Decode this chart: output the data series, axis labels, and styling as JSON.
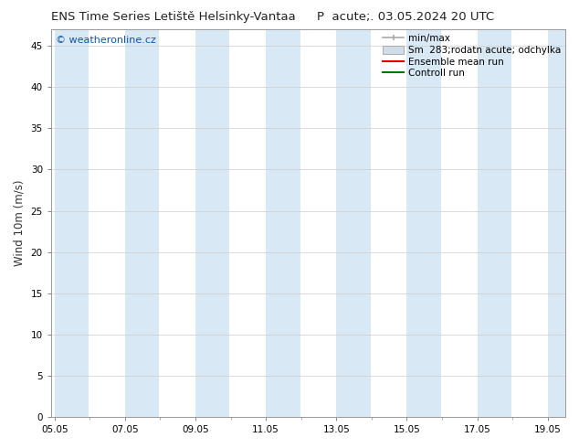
{
  "title": "ENS Time Series Letiště Helsinky-Vantaa",
  "title_right": "P  acute;. 03.05.2024 20 UTC",
  "ylabel": "Wind 10m (m/s)",
  "watermark": "© weatheronline.cz",
  "ylim": [
    0,
    47
  ],
  "yticks": [
    0,
    5,
    10,
    15,
    20,
    25,
    30,
    35,
    40,
    45
  ],
  "xtick_labels": [
    "05.05",
    "07.05",
    "09.05",
    "11.05",
    "13.05",
    "15.05",
    "17.05",
    "19.05"
  ],
  "xtick_positions": [
    0,
    2,
    4,
    6,
    8,
    10,
    12,
    14
  ],
  "x_min": -0.1,
  "x_max": 14.5,
  "bg_color": "#ffffff",
  "plot_bg_color": "#ffffff",
  "shade_color": "#d8e8f4",
  "shade_bands": [
    [
      0.0,
      0.97
    ],
    [
      2.0,
      2.97
    ],
    [
      4.0,
      4.97
    ],
    [
      6.0,
      6.97
    ],
    [
      8.0,
      8.97
    ],
    [
      10.0,
      10.97
    ],
    [
      12.0,
      12.97
    ],
    [
      14.0,
      14.5
    ]
  ],
  "grid_color": "#cccccc",
  "spine_color": "#999999",
  "title_fontsize": 9.5,
  "tick_fontsize": 7.5,
  "label_fontsize": 8.5,
  "watermark_fontsize": 8,
  "watermark_color": "#1155aa",
  "legend_fontsize": 7.5,
  "minmax_color": "#aaaaaa",
  "sm_face_color": "#d0dde8",
  "sm_edge_color": "#aaaaaa",
  "ensemble_color": "#dd0000",
  "control_color": "#007700"
}
